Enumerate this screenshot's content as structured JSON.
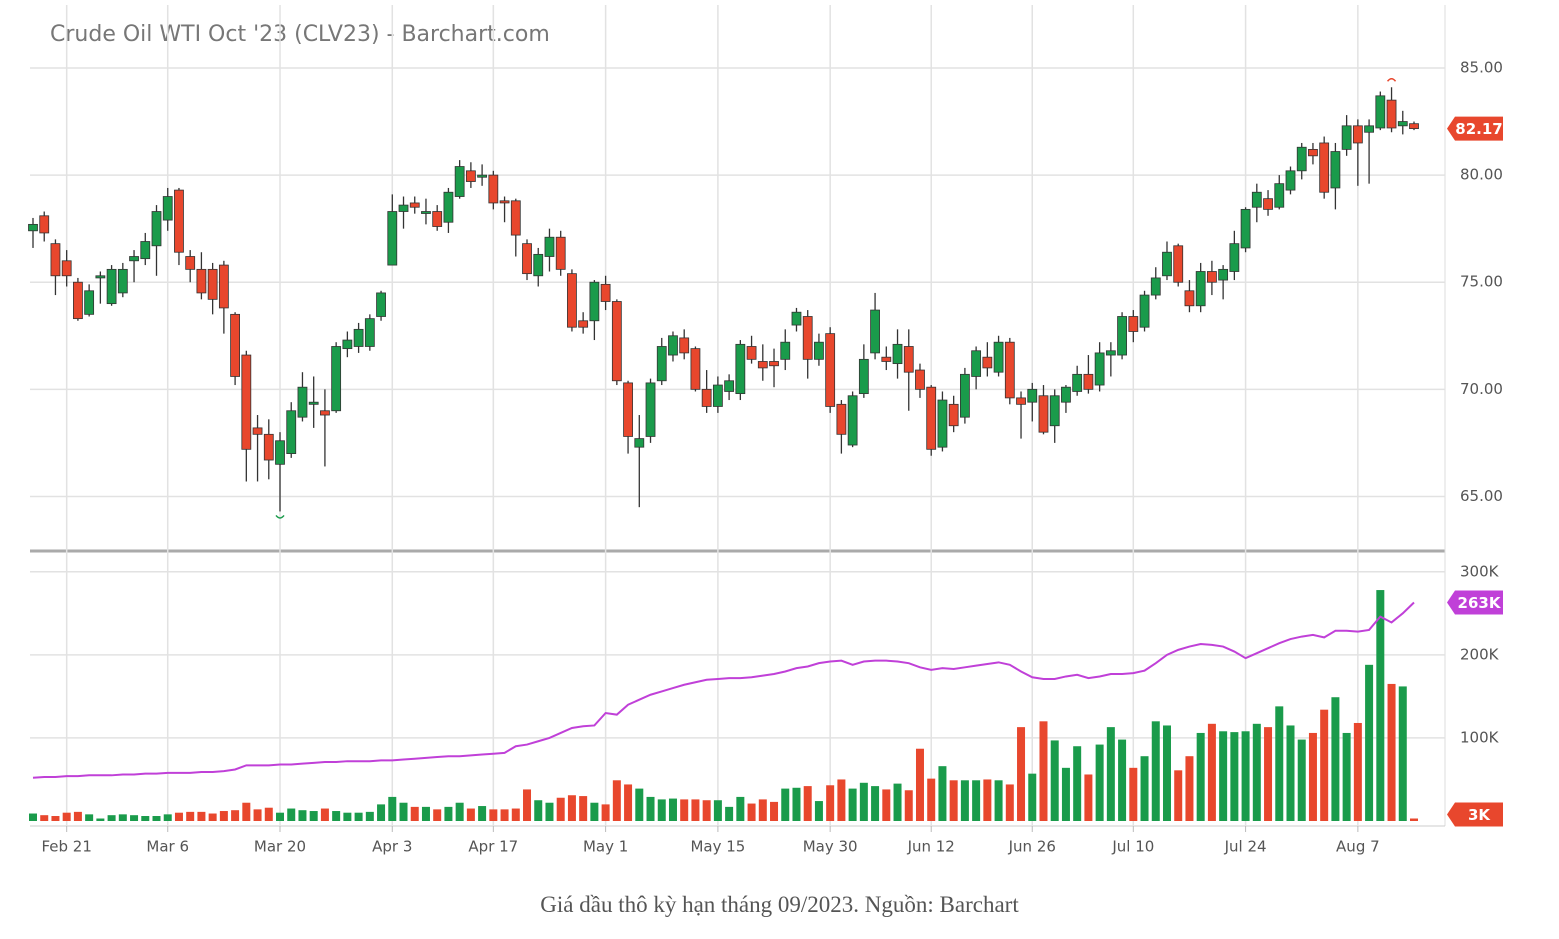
{
  "chart_data": {
    "type": "candlestick",
    "title": "Crude Oil WTI Oct '23 (CLV23) - Barchart.com",
    "categories": [
      null,
      null,
      null,
      "Feb 21",
      null,
      null,
      null,
      null,
      null,
      null,
      null,
      null,
      "Mar 6",
      null,
      null,
      null,
      null,
      null,
      null,
      null,
      null,
      null,
      "Mar 20",
      null,
      null,
      null,
      null,
      null,
      null,
      null,
      null,
      null,
      "Apr 3",
      null,
      null,
      null,
      null,
      null,
      null,
      null,
      null,
      "Apr 17",
      null,
      null,
      null,
      null,
      null,
      null,
      null,
      null,
      null,
      "May 1",
      null,
      null,
      null,
      null,
      null,
      null,
      null,
      null,
      null,
      "May 15",
      null,
      null,
      null,
      null,
      null,
      null,
      null,
      null,
      null,
      "May 30",
      null,
      null,
      null,
      null,
      null,
      null,
      null,
      null,
      "Jun 12",
      null,
      null,
      null,
      null,
      null,
      null,
      null,
      null,
      "Jun 26",
      null,
      null,
      null,
      null,
      null,
      null,
      null,
      null,
      "Jul 10",
      null,
      null,
      null,
      null,
      null,
      null,
      null,
      null,
      null,
      "Jul 24",
      null,
      null,
      null,
      null,
      null,
      null,
      null,
      null,
      null,
      "Aug 7",
      null,
      null,
      null,
      null,
      null
    ],
    "open": [
      77.4,
      78.1,
      76.8,
      76.0,
      75.0,
      73.5,
      75.2,
      74.0,
      74.5,
      76.0,
      76.1,
      76.7,
      77.9,
      79.3,
      76.2,
      75.6,
      75.6,
      75.8,
      73.5,
      71.6,
      68.2,
      67.9,
      66.5,
      67.0,
      68.7,
      69.3,
      69.0,
      69.0,
      71.9,
      72.0,
      72.0,
      73.4,
      75.8,
      78.3,
      78.7,
      78.3,
      78.3,
      77.8,
      79.0,
      80.2,
      79.9,
      80.0,
      78.8,
      78.8,
      76.8,
      75.3,
      76.2,
      77.1,
      75.4,
      73.2,
      73.2,
      74.9,
      74.1,
      70.3,
      67.3,
      67.8,
      70.4,
      71.6,
      72.4,
      71.9,
      70.0,
      69.2,
      69.9,
      69.8,
      72.0,
      71.3,
      71.3,
      71.4,
      73.0,
      73.4,
      71.4,
      72.6,
      69.3,
      67.4,
      69.8,
      71.7,
      71.5,
      71.2,
      72.0,
      70.9,
      70.1,
      67.3,
      69.3,
      68.7,
      70.6,
      71.5,
      70.8,
      72.2,
      69.6,
      69.4,
      69.7,
      68.3,
      69.4,
      69.9,
      70.7,
      70.2,
      71.6,
      71.6,
      73.4,
      72.9,
      74.4,
      75.3,
      76.7,
      74.6,
      73.9,
      75.5,
      75.1,
      75.5,
      76.6,
      78.5,
      78.9,
      78.5,
      79.3,
      80.2,
      81.2,
      81.5,
      79.4,
      81.2,
      82.3,
      82.0,
      82.2,
      83.5,
      82.3,
      82.4
    ],
    "high": [
      78.0,
      78.3,
      77.0,
      76.5,
      75.2,
      74.9,
      75.5,
      75.8,
      75.9,
      76.5,
      77.3,
      78.6,
      79.4,
      79.4,
      76.5,
      76.4,
      75.9,
      76.0,
      73.6,
      71.8,
      68.8,
      68.6,
      68.0,
      69.4,
      70.8,
      70.6,
      70.0,
      72.2,
      72.7,
      73.1,
      73.5,
      74.6,
      79.1,
      79.0,
      79.0,
      78.9,
      78.6,
      79.4,
      80.7,
      80.6,
      80.5,
      80.2,
      79.0,
      78.9,
      77.0,
      76.6,
      77.5,
      77.4,
      75.6,
      73.6,
      75.1,
      75.3,
      74.2,
      70.4,
      68.8,
      70.5,
      72.4,
      72.7,
      72.8,
      72.0,
      70.9,
      70.6,
      70.7,
      72.3,
      72.5,
      72.1,
      71.9,
      72.8,
      73.8,
      73.7,
      72.6,
      72.9,
      69.5,
      69.9,
      72.1,
      74.5,
      72.0,
      72.8,
      72.8,
      71.2,
      70.2,
      69.9,
      69.7,
      71.0,
      72.0,
      72.2,
      72.5,
      72.4,
      69.9,
      70.3,
      70.2,
      70.0,
      70.2,
      71.1,
      71.6,
      72.2,
      72.2,
      73.6,
      73.7,
      74.6,
      75.7,
      76.9,
      76.8,
      75.1,
      75.9,
      76.0,
      75.8,
      77.4,
      78.5,
      79.6,
      79.3,
      80.0,
      80.4,
      81.5,
      81.5,
      81.8,
      81.5,
      82.8,
      82.6,
      82.6,
      83.9,
      84.1,
      83.0,
      82.5
    ],
    "low": [
      76.6,
      76.9,
      74.4,
      74.8,
      73.2,
      73.4,
      74.0,
      73.9,
      74.3,
      75.0,
      75.8,
      75.3,
      77.4,
      75.8,
      75.0,
      74.2,
      73.5,
      72.6,
      70.2,
      65.7,
      65.7,
      65.8,
      64.3,
      66.8,
      68.5,
      68.2,
      66.4,
      68.9,
      71.5,
      71.7,
      71.8,
      73.2,
      75.8,
      77.5,
      78.2,
      77.7,
      77.4,
      77.3,
      78.9,
      79.4,
      79.5,
      78.4,
      77.8,
      76.2,
      75.1,
      74.8,
      75.5,
      75.3,
      72.7,
      72.6,
      72.3,
      73.7,
      70.2,
      67.0,
      64.5,
      67.5,
      70.2,
      71.3,
      71.4,
      69.9,
      68.9,
      68.9,
      69.5,
      69.5,
      71.2,
      70.4,
      70.1,
      70.9,
      72.7,
      70.5,
      71.1,
      68.9,
      67.0,
      67.3,
      69.6,
      71.4,
      70.9,
      70.5,
      69.0,
      69.6,
      66.9,
      67.1,
      68.0,
      68.4,
      70.0,
      70.6,
      70.6,
      69.3,
      67.7,
      68.5,
      67.9,
      67.5,
      68.9,
      69.7,
      69.8,
      69.9,
      70.6,
      71.4,
      72.2,
      72.7,
      74.2,
      75.1,
      74.8,
      73.6,
      73.6,
      74.4,
      74.2,
      75.1,
      76.4,
      77.8,
      78.1,
      78.4,
      79.1,
      79.8,
      80.5,
      78.9,
      78.4,
      80.9,
      79.5,
      79.6,
      82.1,
      82.0,
      81.9,
      82.1
    ],
    "close": [
      77.7,
      77.3,
      75.3,
      75.3,
      73.3,
      74.6,
      75.3,
      75.6,
      75.6,
      76.2,
      76.9,
      78.3,
      79.0,
      76.4,
      75.6,
      74.5,
      74.2,
      73.8,
      70.6,
      67.2,
      67.9,
      66.7,
      67.6,
      69.0,
      70.1,
      69.4,
      68.8,
      72.0,
      72.3,
      72.8,
      73.3,
      74.5,
      78.3,
      78.6,
      78.5,
      78.3,
      77.6,
      79.2,
      80.4,
      79.7,
      80.0,
      78.7,
      78.7,
      77.2,
      75.4,
      76.3,
      77.1,
      75.6,
      72.9,
      72.9,
      75.0,
      74.1,
      70.4,
      67.8,
      67.7,
      70.3,
      72.0,
      72.5,
      71.7,
      70.0,
      69.2,
      70.2,
      70.4,
      72.1,
      71.4,
      71.0,
      71.1,
      72.2,
      73.6,
      71.4,
      72.2,
      69.2,
      67.9,
      69.7,
      71.4,
      73.7,
      71.3,
      72.1,
      70.8,
      70.0,
      67.2,
      69.5,
      68.3,
      70.7,
      71.8,
      71.0,
      72.2,
      69.6,
      69.3,
      70.0,
      68.0,
      69.7,
      70.1,
      70.7,
      70.0,
      71.7,
      71.8,
      73.4,
      72.7,
      74.4,
      75.2,
      76.4,
      75.0,
      73.9,
      75.5,
      75.0,
      75.6,
      76.8,
      78.4,
      79.2,
      78.4,
      79.6,
      80.2,
      81.3,
      80.9,
      79.2,
      81.1,
      82.3,
      81.5,
      82.3,
      83.7,
      82.2,
      82.5,
      82.17
    ],
    "up_color": "#1a9b4b",
    "down_color": "#e8472d",
    "ylim": [
      62.5,
      87.94
    ],
    "yticks": [
      {
        "value": 65,
        "label": "65.00"
      },
      {
        "value": 70,
        "label": "70.00"
      },
      {
        "value": 75,
        "label": "75.00"
      },
      {
        "value": 80,
        "label": "80.00"
      },
      {
        "value": 85,
        "label": "85.00"
      }
    ],
    "grid": true,
    "volume": {
      "values": [
        9,
        7,
        6,
        10,
        11,
        8,
        3,
        7,
        8,
        7,
        6,
        6,
        8,
        10,
        11,
        11,
        9,
        12,
        13,
        22,
        14,
        16,
        10,
        15,
        13,
        12,
        15,
        12,
        10,
        10,
        11,
        20,
        29,
        22,
        17,
        17,
        14,
        17,
        22,
        15,
        18,
        14,
        14,
        15,
        38,
        25,
        22,
        28,
        31,
        30,
        22,
        20,
        49,
        44,
        39,
        29,
        26,
        27,
        26,
        26,
        25,
        25,
        17,
        29,
        21,
        26,
        23,
        39,
        40,
        42,
        24,
        43,
        50,
        39,
        46,
        42,
        38,
        45,
        37,
        87,
        51,
        66,
        49,
        49,
        49,
        50,
        49,
        44,
        113,
        57,
        120,
        97,
        64,
        90,
        56,
        92,
        113,
        98,
        64,
        78,
        120,
        115,
        61,
        78,
        106,
        117,
        108,
        107,
        108,
        117,
        113,
        138,
        115,
        98,
        106,
        134,
        149,
        106,
        118,
        188,
        278,
        165,
        162,
        3
      ],
      "value_labels": [
        null,
        null,
        null,
        null,
        null,
        null,
        null,
        null,
        null,
        null,
        null,
        null,
        null,
        null,
        null,
        null,
        null,
        null,
        null,
        null,
        null,
        null,
        null,
        null,
        null,
        null,
        null,
        null,
        null,
        null,
        null,
        null,
        null,
        null,
        null,
        null,
        null,
        null,
        null,
        null,
        null,
        null,
        null,
        null,
        null,
        null,
        null,
        null,
        null,
        null,
        null,
        null,
        null,
        null,
        null,
        null,
        null,
        null,
        null,
        null,
        null,
        null,
        null,
        null,
        null,
        null,
        null,
        null,
        null,
        null,
        null,
        null,
        null,
        null,
        null,
        null,
        null,
        null,
        null,
        null,
        null,
        null,
        null,
        null,
        null,
        null,
        null,
        null,
        null,
        null,
        null,
        null,
        null,
        null,
        null,
        null,
        null,
        null,
        null,
        null,
        null,
        null,
        null,
        null,
        null,
        null,
        null,
        null,
        null,
        null,
        null,
        null,
        null,
        null,
        null,
        null,
        null,
        null,
        null,
        null,
        null,
        null,
        null,
        "3K"
      ],
      "ylim": [
        0,
        319
      ],
      "yticks": [
        {
          "value": 100,
          "label": "100K"
        },
        {
          "value": 200,
          "label": "200K"
        },
        {
          "value": 300,
          "label": "300K"
        }
      ],
      "ma": {
        "color": "#c040d8",
        "values": [
          52,
          53,
          53,
          54,
          54,
          55,
          55,
          55,
          56,
          56,
          57,
          57,
          58,
          58,
          58,
          59,
          59,
          60,
          62,
          67,
          67,
          67,
          68,
          68,
          69,
          70,
          71,
          71,
          72,
          72,
          72,
          73,
          73,
          74,
          75,
          76,
          77,
          78,
          78,
          79,
          80,
          81,
          82,
          90,
          92,
          96,
          100,
          106,
          112,
          114,
          115,
          130,
          128,
          140,
          146,
          152,
          156,
          160,
          164,
          167,
          170,
          171,
          172,
          172,
          173,
          175,
          177,
          180,
          184,
          186,
          190,
          192,
          193,
          188,
          192,
          193,
          193,
          192,
          190,
          185,
          182,
          184,
          183,
          185,
          187,
          189,
          191,
          188,
          180,
          173,
          171,
          171,
          174,
          176,
          172,
          174,
          177,
          177,
          178,
          181,
          190,
          200,
          206,
          210,
          213,
          212,
          210,
          204,
          196,
          202,
          208,
          214,
          219,
          222,
          224,
          221,
          229,
          229,
          228,
          230,
          246,
          239,
          250,
          263
        ],
        "value_labels": [
          null,
          null,
          null,
          null,
          null,
          null,
          null,
          null,
          null,
          null,
          null,
          null,
          null,
          null,
          null,
          null,
          null,
          null,
          null,
          null,
          null,
          null,
          null,
          null,
          null,
          null,
          null,
          null,
          null,
          null,
          null,
          null,
          null,
          null,
          null,
          null,
          null,
          null,
          null,
          null,
          null,
          null,
          null,
          null,
          null,
          null,
          null,
          null,
          null,
          null,
          null,
          null,
          null,
          null,
          null,
          null,
          null,
          null,
          null,
          null,
          null,
          null,
          null,
          null,
          null,
          null,
          null,
          null,
          null,
          null,
          null,
          null,
          null,
          null,
          null,
          null,
          null,
          null,
          null,
          null,
          null,
          null,
          null,
          null,
          null,
          null,
          null,
          null,
          null,
          null,
          null,
          null,
          null,
          null,
          null,
          null,
          null,
          null,
          null,
          null,
          null,
          null,
          null,
          null,
          null,
          null,
          null,
          null,
          null,
          null,
          null,
          null,
          null,
          null,
          null,
          null,
          null,
          null,
          null,
          null,
          null,
          null,
          null,
          "263K"
        ]
      }
    }
  },
  "caption": "Giá dầu thô kỳ hạn tháng 09/2023. Nguồn: Barchart"
}
